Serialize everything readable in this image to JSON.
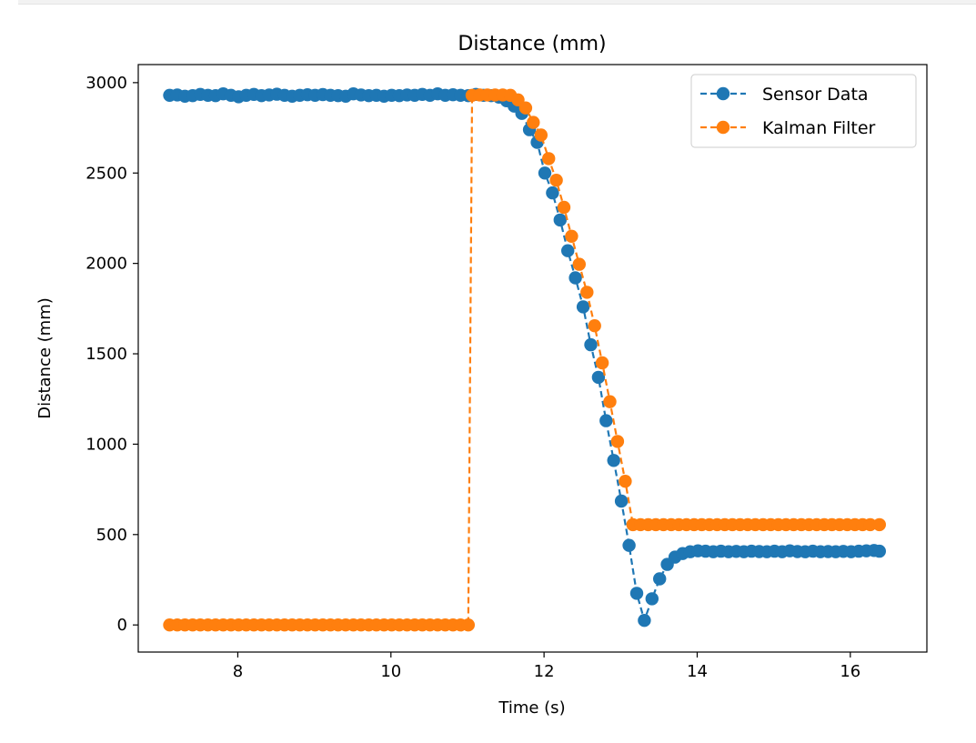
{
  "chart_data": {
    "type": "line",
    "title": "Distance (mm)",
    "xlabel": "Time (s)",
    "ylabel": "Distance (mm)",
    "xlim": [
      6.7,
      17.0
    ],
    "ylim": [
      -150,
      3100
    ],
    "xticks": [
      8,
      10,
      12,
      14,
      16
    ],
    "yticks": [
      0,
      500,
      1000,
      1500,
      2000,
      2500,
      3000
    ],
    "grid": false,
    "legend": "upper right",
    "series": [
      {
        "name": "Sensor Data",
        "color": "#1f77b4",
        "linestyle": "dashed",
        "marker": "circle",
        "points": [
          [
            7.11,
            2930
          ],
          [
            7.21,
            2932
          ],
          [
            7.31,
            2925
          ],
          [
            7.41,
            2928
          ],
          [
            7.51,
            2935
          ],
          [
            7.61,
            2930
          ],
          [
            7.71,
            2928
          ],
          [
            7.81,
            2938
          ],
          [
            7.91,
            2930
          ],
          [
            8.01,
            2922
          ],
          [
            8.11,
            2930
          ],
          [
            8.21,
            2935
          ],
          [
            8.31,
            2928
          ],
          [
            8.41,
            2932
          ],
          [
            8.51,
            2936
          ],
          [
            8.61,
            2930
          ],
          [
            8.71,
            2925
          ],
          [
            8.81,
            2930
          ],
          [
            8.91,
            2933
          ],
          [
            9.01,
            2930
          ],
          [
            9.11,
            2934
          ],
          [
            9.21,
            2930
          ],
          [
            9.31,
            2928
          ],
          [
            9.41,
            2925
          ],
          [
            9.51,
            2938
          ],
          [
            9.61,
            2932
          ],
          [
            9.71,
            2928
          ],
          [
            9.81,
            2930
          ],
          [
            9.91,
            2925
          ],
          [
            10.01,
            2930
          ],
          [
            10.11,
            2928
          ],
          [
            10.21,
            2932
          ],
          [
            10.31,
            2930
          ],
          [
            10.41,
            2935
          ],
          [
            10.51,
            2930
          ],
          [
            10.61,
            2938
          ],
          [
            10.71,
            2930
          ],
          [
            10.81,
            2933
          ],
          [
            10.91,
            2930
          ],
          [
            11.01,
            2928
          ],
          [
            11.11,
            2935
          ],
          [
            11.21,
            2930
          ],
          [
            11.31,
            2928
          ],
          [
            11.41,
            2920
          ],
          [
            11.51,
            2900
          ],
          [
            11.61,
            2870
          ],
          [
            11.71,
            2830
          ],
          [
            11.81,
            2740
          ],
          [
            11.91,
            2670
          ],
          [
            12.01,
            2500
          ],
          [
            12.11,
            2390
          ],
          [
            12.21,
            2240
          ],
          [
            12.31,
            2070
          ],
          [
            12.41,
            1920
          ],
          [
            12.51,
            1760
          ],
          [
            12.61,
            1550
          ],
          [
            12.71,
            1370
          ],
          [
            12.81,
            1130
          ],
          [
            12.91,
            910
          ],
          [
            13.01,
            685
          ],
          [
            13.11,
            440
          ],
          [
            13.21,
            175
          ],
          [
            13.31,
            25
          ],
          [
            13.41,
            145
          ],
          [
            13.51,
            255
          ],
          [
            13.61,
            335
          ],
          [
            13.71,
            375
          ],
          [
            13.81,
            395
          ],
          [
            13.91,
            405
          ],
          [
            14.01,
            410
          ],
          [
            14.11,
            408
          ],
          [
            14.21,
            405
          ],
          [
            14.31,
            408
          ],
          [
            14.41,
            405
          ],
          [
            14.51,
            407
          ],
          [
            14.61,
            405
          ],
          [
            14.71,
            408
          ],
          [
            14.81,
            406
          ],
          [
            14.91,
            405
          ],
          [
            15.01,
            408
          ],
          [
            15.11,
            405
          ],
          [
            15.21,
            410
          ],
          [
            15.31,
            406
          ],
          [
            15.41,
            405
          ],
          [
            15.51,
            408
          ],
          [
            15.61,
            405
          ],
          [
            15.71,
            406
          ],
          [
            15.81,
            405
          ],
          [
            15.91,
            407
          ],
          [
            16.01,
            405
          ],
          [
            16.11,
            408
          ],
          [
            16.21,
            410
          ],
          [
            16.31,
            412
          ],
          [
            16.38,
            408
          ]
        ]
      },
      {
        "name": "Kalman Filter",
        "color": "#ff7f0e",
        "linestyle": "dashed",
        "marker": "circle",
        "points": [
          [
            7.11,
            0
          ],
          [
            7.21,
            0
          ],
          [
            7.31,
            0
          ],
          [
            7.41,
            0
          ],
          [
            7.51,
            0
          ],
          [
            7.61,
            0
          ],
          [
            7.71,
            0
          ],
          [
            7.81,
            0
          ],
          [
            7.91,
            0
          ],
          [
            8.01,
            0
          ],
          [
            8.11,
            0
          ],
          [
            8.21,
            0
          ],
          [
            8.31,
            0
          ],
          [
            8.41,
            0
          ],
          [
            8.51,
            0
          ],
          [
            8.61,
            0
          ],
          [
            8.71,
            0
          ],
          [
            8.81,
            0
          ],
          [
            8.91,
            0
          ],
          [
            9.01,
            0
          ],
          [
            9.11,
            0
          ],
          [
            9.21,
            0
          ],
          [
            9.31,
            0
          ],
          [
            9.41,
            0
          ],
          [
            9.51,
            0
          ],
          [
            9.61,
            0
          ],
          [
            9.71,
            0
          ],
          [
            9.81,
            0
          ],
          [
            9.91,
            0
          ],
          [
            10.01,
            0
          ],
          [
            10.11,
            0
          ],
          [
            10.21,
            0
          ],
          [
            10.31,
            0
          ],
          [
            10.41,
            0
          ],
          [
            10.51,
            0
          ],
          [
            10.61,
            0
          ],
          [
            10.71,
            0
          ],
          [
            10.81,
            0
          ],
          [
            10.91,
            0
          ],
          [
            11.01,
            0
          ],
          [
            11.06,
            2930
          ],
          [
            11.16,
            2932
          ],
          [
            11.26,
            2932
          ],
          [
            11.36,
            2932
          ],
          [
            11.46,
            2932
          ],
          [
            11.56,
            2930
          ],
          [
            11.66,
            2905
          ],
          [
            11.76,
            2860
          ],
          [
            11.86,
            2780
          ],
          [
            11.96,
            2710
          ],
          [
            12.06,
            2580
          ],
          [
            12.16,
            2460
          ],
          [
            12.26,
            2310
          ],
          [
            12.36,
            2150
          ],
          [
            12.46,
            1995
          ],
          [
            12.56,
            1840
          ],
          [
            12.66,
            1655
          ],
          [
            12.76,
            1450
          ],
          [
            12.86,
            1235
          ],
          [
            12.96,
            1015
          ],
          [
            13.06,
            795
          ],
          [
            13.16,
            555
          ],
          [
            13.26,
            555
          ],
          [
            13.36,
            555
          ],
          [
            13.46,
            555
          ],
          [
            13.56,
            555
          ],
          [
            13.66,
            555
          ],
          [
            13.76,
            555
          ],
          [
            13.86,
            555
          ],
          [
            13.96,
            555
          ],
          [
            14.06,
            555
          ],
          [
            14.16,
            555
          ],
          [
            14.26,
            555
          ],
          [
            14.36,
            555
          ],
          [
            14.46,
            555
          ],
          [
            14.56,
            555
          ],
          [
            14.66,
            555
          ],
          [
            14.76,
            555
          ],
          [
            14.86,
            555
          ],
          [
            14.96,
            555
          ],
          [
            15.06,
            555
          ],
          [
            15.16,
            555
          ],
          [
            15.26,
            555
          ],
          [
            15.36,
            555
          ],
          [
            15.46,
            555
          ],
          [
            15.56,
            555
          ],
          [
            15.66,
            555
          ],
          [
            15.76,
            555
          ],
          [
            15.86,
            555
          ],
          [
            15.96,
            555
          ],
          [
            16.06,
            555
          ],
          [
            16.16,
            555
          ],
          [
            16.26,
            555
          ],
          [
            16.38,
            555
          ]
        ]
      }
    ]
  }
}
